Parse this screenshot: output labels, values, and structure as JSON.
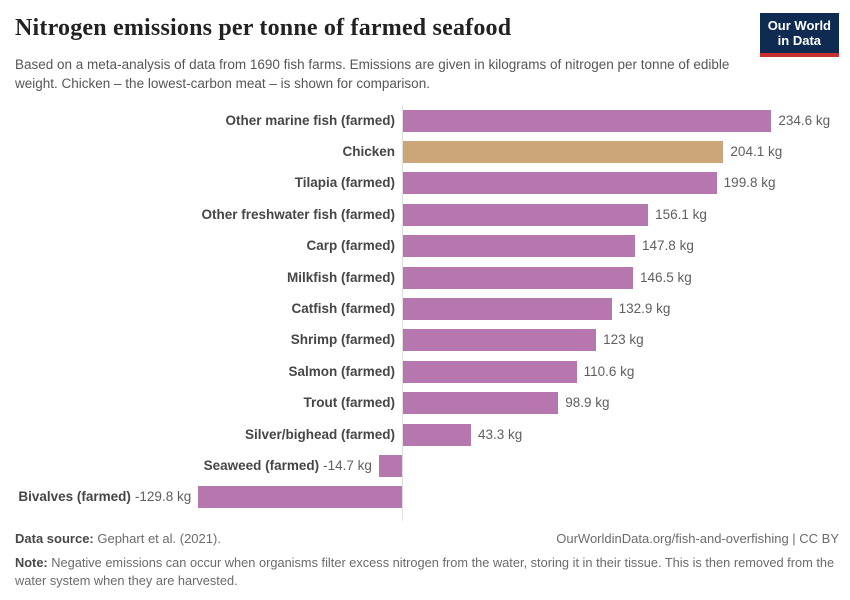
{
  "header": {
    "title": "Nitrogen emissions per tonne of farmed seafood",
    "subtitle": "Based on a meta-analysis of data from 1690 fish farms. Emissions are given in kilograms of nitrogen per tonne of edible weight. Chicken – the lowest-carbon meat – is shown for comparison.",
    "logo": {
      "line1": "Our World",
      "line2": "in Data",
      "bg_color": "#0f2b52",
      "accent_color": "#c7322f"
    }
  },
  "chart_data": {
    "type": "bar",
    "orientation": "horizontal",
    "unit": "kg of nitrogen per tonne of edible weight",
    "xlim": [
      -140,
      260
    ],
    "grid": false,
    "legend": "none",
    "colors": {
      "default": "#b577ad",
      "highlight": "#caa678",
      "axis": "#dedede"
    },
    "bars": [
      {
        "label": "Other marine fish (farmed)",
        "value": 234.6,
        "value_label": "234.6 kg",
        "color": "default"
      },
      {
        "label": "Chicken",
        "value": 204.1,
        "value_label": "204.1 kg",
        "color": "highlight"
      },
      {
        "label": "Tilapia (farmed)",
        "value": 199.8,
        "value_label": "199.8 kg",
        "color": "default"
      },
      {
        "label": "Other freshwater fish (farmed)",
        "value": 156.1,
        "value_label": "156.1 kg",
        "color": "default"
      },
      {
        "label": "Carp (farmed)",
        "value": 147.8,
        "value_label": "147.8 kg",
        "color": "default"
      },
      {
        "label": "Milkfish (farmed)",
        "value": 146.5,
        "value_label": "146.5 kg",
        "color": "default"
      },
      {
        "label": "Catfish (farmed)",
        "value": 132.9,
        "value_label": "132.9 kg",
        "color": "default"
      },
      {
        "label": "Shrimp (farmed)",
        "value": 123,
        "value_label": "123 kg",
        "color": "default"
      },
      {
        "label": "Salmon (farmed)",
        "value": 110.6,
        "value_label": "110.6 kg",
        "color": "default"
      },
      {
        "label": "Trout (farmed)",
        "value": 98.9,
        "value_label": "98.9 kg",
        "color": "default"
      },
      {
        "label": "Silver/bighead (farmed)",
        "value": 43.3,
        "value_label": "43.3 kg",
        "color": "default"
      },
      {
        "label": "Seaweed (farmed)",
        "value": -14.7,
        "value_label": "-14.7 kg",
        "color": "default"
      },
      {
        "label": "Bivalves (farmed)",
        "value": -129.8,
        "value_label": "-129.8 kg",
        "color": "default"
      }
    ]
  },
  "footer": {
    "datasource_label": "Data source:",
    "datasource_value": " Gephart et al. (2021).",
    "link_text": "OurWorldinData.org/fish-and-overfishing | CC BY",
    "note_label": "Note:",
    "note_text": " Negative emissions can occur when organisms filter excess nitrogen from the water, storing it in their tissue. This is then removed from the water system when they are harvested."
  }
}
